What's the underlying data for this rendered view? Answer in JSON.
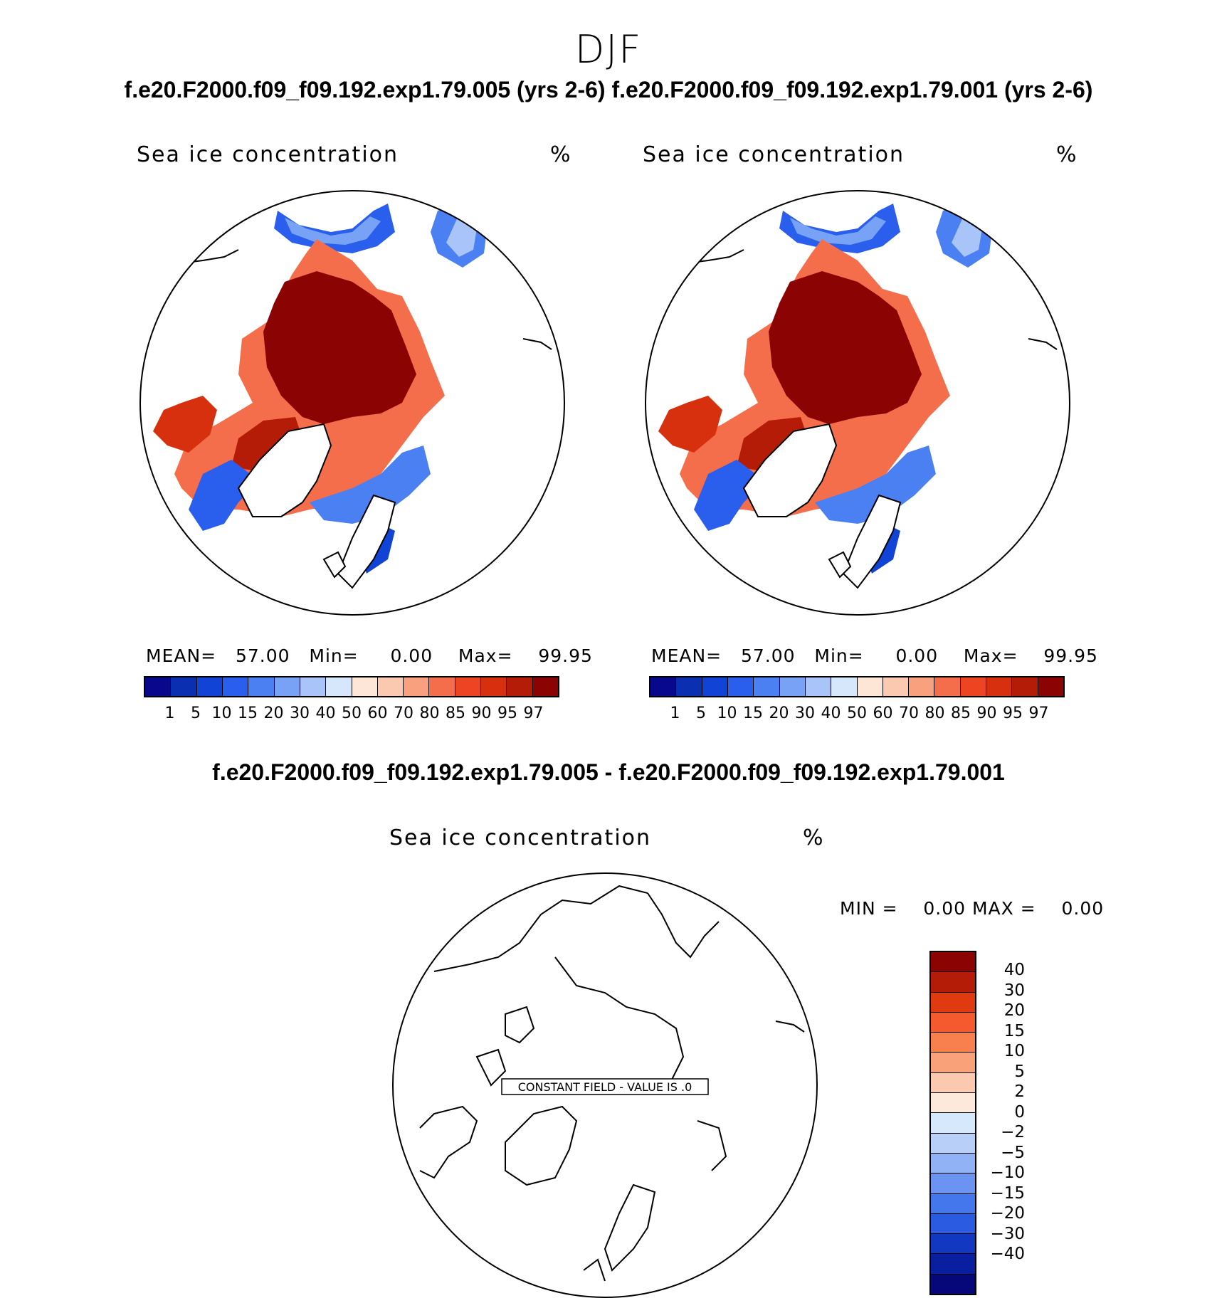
{
  "season": "DJF",
  "case_titles": "f.e20.F2000.f09_f09.192.exp1.79.005 (yrs 2-6) f.e20.F2000.f09_f09.192.exp1.79.001 (yrs 2-6)",
  "diff_title": "f.e20.F2000.f09_f09.192.exp1.79.005 - f.e20.F2000.f09_f09.192.exp1.79.001",
  "panels": [
    {
      "variable": "Sea ice concentration",
      "units": "%",
      "mean_label": "MEAN=",
      "mean": "57.00",
      "min_label": "Min=",
      "min": "0.00",
      "max_label": "Max=",
      "max": "99.95"
    },
    {
      "variable": "Sea ice concentration",
      "units": "%",
      "mean_label": "MEAN=",
      "mean": "57.00",
      "min_label": "Min=",
      "min": "0.00",
      "max_label": "Max=",
      "max": "99.95"
    }
  ],
  "diff_panel": {
    "variable": "Sea ice concentration",
    "units": "%",
    "min_label": "MIN =",
    "min": "0.00",
    "max_label": "MAX =",
    "max": "0.00",
    "constant_label": "CONSTANT FIELD - VALUE IS .0"
  },
  "abs_colorbar": {
    "colors": [
      "#08088c",
      "#0a2fb0",
      "#1144d6",
      "#2a5fee",
      "#4a80f2",
      "#78a2f5",
      "#a9c4f8",
      "#d6e6fb",
      "#fde6d6",
      "#fbc9b0",
      "#f9a17f",
      "#f56e4b",
      "#ed4422",
      "#d6300f",
      "#b51c08",
      "#8c0303"
    ],
    "ticks": [
      "1",
      "5",
      "10",
      "15",
      "20",
      "30",
      "40",
      "50",
      "60",
      "70",
      "80",
      "85",
      "90",
      "95",
      "97"
    ]
  },
  "diff_colorbar": {
    "colors": [
      "#8c0303",
      "#b51c08",
      "#e03a10",
      "#f55a2e",
      "#f8804f",
      "#f9a27a",
      "#fbc9b0",
      "#fde9dc",
      "#d6e8fb",
      "#b8cff8",
      "#91b2f5",
      "#6b93f1",
      "#4476ec",
      "#2a5be0",
      "#1238c2",
      "#0a1ea0",
      "#06087a"
    ],
    "ticks": [
      "40",
      "30",
      "20",
      "15",
      "10",
      "5",
      "2",
      "0",
      "−2",
      "−5",
      "−10",
      "−15",
      "−20",
      "−30",
      "−40"
    ]
  }
}
